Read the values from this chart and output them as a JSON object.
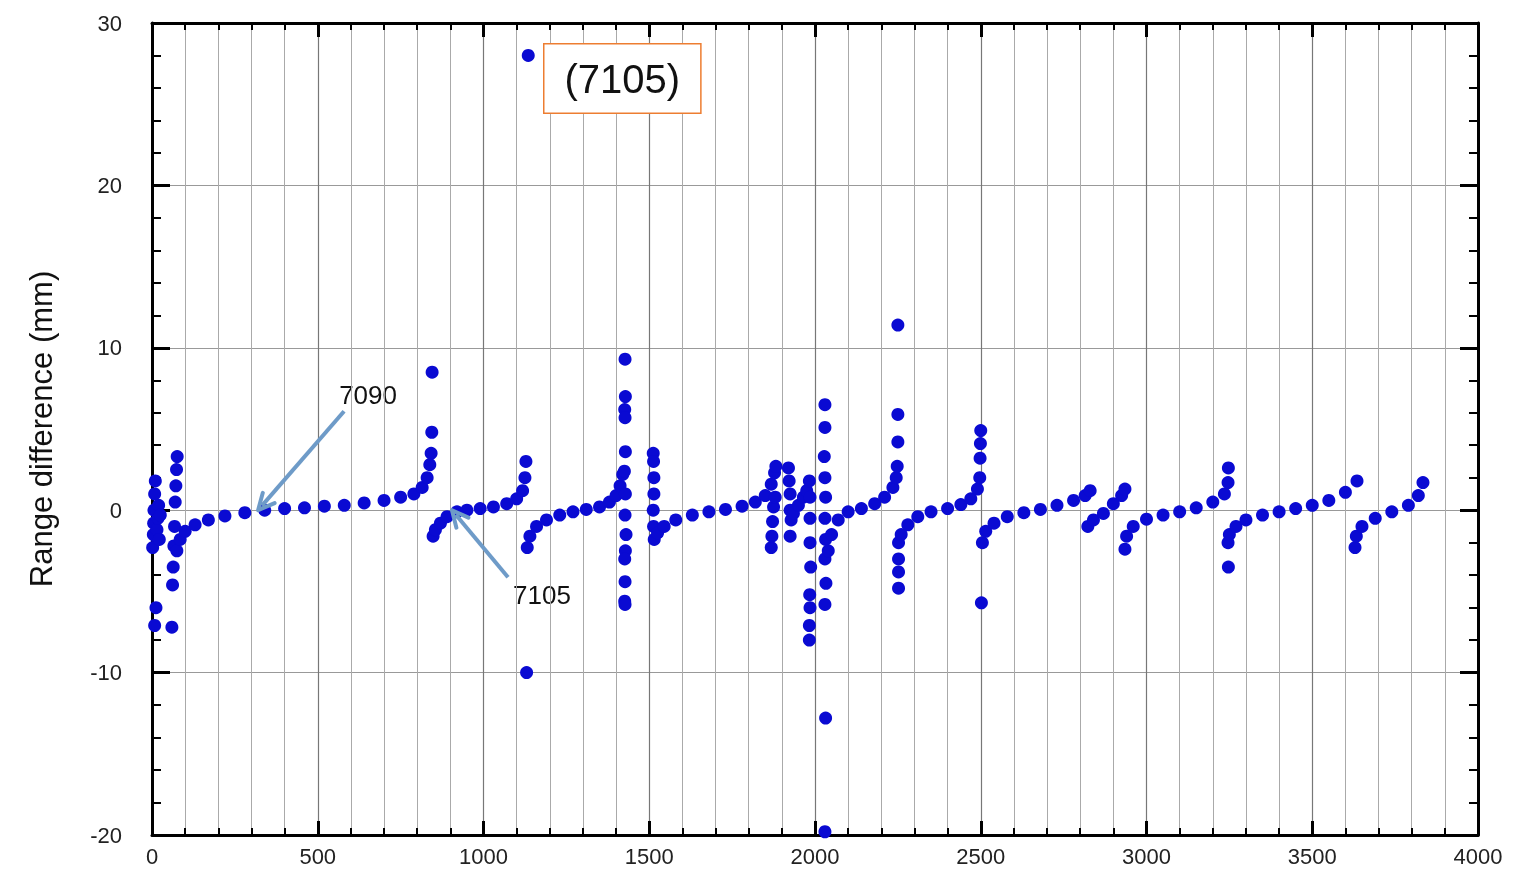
{
  "chart_data": {
    "type": "scatter",
    "ylabel": "Range difference (mm)",
    "color": "#0a0ad2",
    "marker": "circle",
    "grid": true,
    "xlim": [
      0,
      4000
    ],
    "xticks": [
      0,
      500,
      1000,
      1500,
      2000,
      2500,
      3000,
      3500,
      4000
    ],
    "ylim": [
      -20,
      30
    ],
    "yticks": [
      -20,
      -10,
      0,
      10,
      20,
      30
    ],
    "annotations": [
      "(7105)",
      {
        "text": "7090",
        "x": 320,
        "y": 0
      },
      {
        "text": "7105",
        "x": 905,
        "y": 0
      }
    ],
    "x": [
      2,
      4,
      5,
      6,
      8,
      10,
      12,
      8,
      15,
      18,
      20,
      22,
      25,
      60,
      62,
      64,
      66,
      68,
      70,
      72,
      74,
      76,
      75,
      85,
      100,
      130,
      170,
      220,
      280,
      340,
      400,
      460,
      520,
      580,
      640,
      700,
      750,
      790,
      815,
      830,
      838,
      842,
      844,
      845,
      848,
      855,
      870,
      890,
      920,
      950,
      990,
      1030,
      1070,
      1100,
      1118,
      1125,
      1128,
      1130,
      1135,
      1132,
      1140,
      1160,
      1190,
      1230,
      1270,
      1310,
      1350,
      1380,
      1400,
      1412,
      1420,
      1427,
      1428,
      1426,
      1427,
      1428,
      1425,
      1428,
      1427,
      1430,
      1428,
      1426,
      1427,
      1426,
      1427,
      1512,
      1513,
      1514,
      1514,
      1512,
      1513,
      1515,
      1525,
      1545,
      1580,
      1630,
      1680,
      1730,
      1780,
      1820,
      1850,
      1868,
      1878,
      1882,
      1868,
      1870,
      1872,
      1875,
      1880,
      1920,
      1922,
      1925,
      1925,
      1928,
      1925,
      1935,
      1950,
      1965,
      1975,
      1983,
      1985,
      1985,
      1985,
      1987,
      1984,
      1985,
      1983,
      1983,
      2030,
      2030,
      2028,
      2030,
      2032,
      2030,
      2032,
      2030,
      2033,
      2030,
      2032,
      2030,
      2040,
      2050,
      2070,
      2100,
      2140,
      2180,
      2210,
      2235,
      2245,
      2248,
      2250,
      2250,
      2250,
      2252,
      2252,
      2252,
      2252,
      2260,
      2280,
      2310,
      2350,
      2400,
      2440,
      2470,
      2490,
      2497,
      2498,
      2499,
      2500,
      2502,
      2505,
      2515,
      2540,
      2580,
      2630,
      2680,
      2730,
      2780,
      2815,
      2830,
      2823,
      2840,
      2870,
      2900,
      2925,
      2935,
      2935,
      2940,
      2960,
      3000,
      3050,
      3100,
      3150,
      3200,
      3235,
      3246,
      3247,
      3246,
      3247,
      3250,
      3270,
      3300,
      3350,
      3400,
      3450,
      3500,
      3550,
      3600,
      3635,
      3629,
      3633,
      3650,
      3690,
      3740,
      3790,
      3820,
      3834
    ],
    "values": [
      -2.3,
      -1.5,
      -0.8,
      0,
      1.0,
      1.8,
      -6.0,
      -7.1,
      -1.2,
      -0.5,
      0.3,
      -1.8,
      -0.3,
      -7.2,
      -4.6,
      -3.5,
      -2.2,
      -1.0,
      0.5,
      1.5,
      2.5,
      3.3,
      -2.5,
      -1.8,
      -1.3,
      -0.9,
      -0.6,
      -0.35,
      -0.15,
      0,
      0.1,
      0.15,
      0.25,
      0.3,
      0.45,
      0.6,
      0.8,
      1.0,
      1.4,
      2.0,
      2.8,
      3.5,
      4.8,
      8.5,
      -1.6,
      -1.2,
      -0.8,
      -0.4,
      -0.1,
      0,
      0.1,
      0.2,
      0.4,
      0.7,
      1.2,
      2.0,
      3.0,
      -10,
      28,
      -2.3,
      -1.6,
      -1.0,
      -0.6,
      -0.3,
      -0.1,
      0.05,
      0.2,
      0.5,
      0.9,
      1.5,
      2.2,
      9.3,
      7.0,
      6.2,
      5.7,
      3.6,
      2.4,
      1.0,
      -0.3,
      -1.5,
      -2.5,
      -3.0,
      -4.4,
      -5.6,
      -5.8,
      3.5,
      3.0,
      2.0,
      1.0,
      0,
      -1.0,
      -1.8,
      -1.4,
      -1.0,
      -0.6,
      -0.3,
      -0.1,
      0.05,
      0.25,
      0.5,
      0.9,
      1.6,
      2.3,
      2.7,
      -2.3,
      -1.6,
      -0.7,
      0.2,
      0.8,
      2.6,
      1.8,
      1.0,
      0,
      -0.6,
      -1.6,
      -0.2,
      0.3,
      0.8,
      1.2,
      1.8,
      0.8,
      -0.5,
      -2.0,
      -3.5,
      -5.2,
      -6.0,
      -7.1,
      -8.0,
      6.5,
      5.1,
      3.3,
      2.0,
      0.8,
      -0.5,
      -1.8,
      -3.0,
      -4.5,
      -5.8,
      -12.8,
      -19.8,
      -2.5,
      -1.5,
      -0.6,
      -0.1,
      0.1,
      0.4,
      0.8,
      1.4,
      2.0,
      2.7,
      4.2,
      5.9,
      11.4,
      -2.0,
      -3.0,
      -3.8,
      -4.8,
      -1.5,
      -0.9,
      -0.4,
      -0.1,
      0.1,
      0.35,
      0.7,
      1.3,
      2.0,
      3.2,
      4.1,
      4.9,
      -5.7,
      -2.0,
      -1.3,
      -0.8,
      -0.4,
      -0.15,
      0.05,
      0.3,
      0.6,
      0.9,
      1.2,
      -1.0,
      -0.6,
      -0.2,
      0.4,
      0.9,
      1.3,
      -2.4,
      -1.6,
      -1.0,
      -0.55,
      -0.3,
      -0.1,
      0.15,
      0.5,
      1.0,
      1.7,
      2.6,
      -2.0,
      -3.5,
      -1.5,
      -1.0,
      -0.6,
      -0.3,
      -0.1,
      0.1,
      0.3,
      0.6,
      1.1,
      1.8,
      -2.3,
      -1.6,
      -1.0,
      -0.5,
      -0.1,
      0.3,
      0.9,
      1.7
    ]
  }
}
